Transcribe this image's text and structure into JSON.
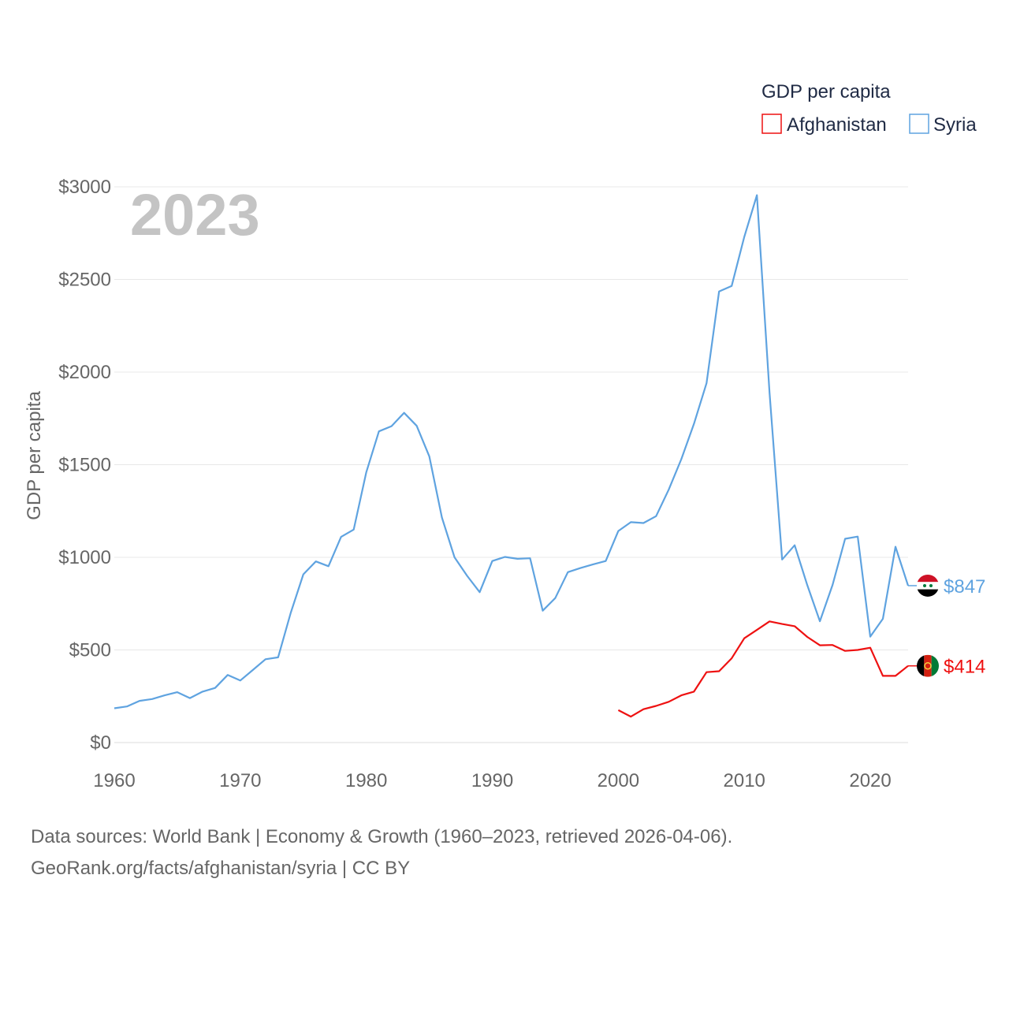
{
  "chart_data": {
    "type": "line",
    "title": "GDP per capita",
    "watermark_year": "2023",
    "xlabel": "",
    "ylabel": "GDP per capita",
    "xlim": [
      1960,
      2023
    ],
    "ylim": [
      0,
      3000
    ],
    "x_ticks": [
      1960,
      1970,
      1980,
      1990,
      2000,
      2010,
      2020
    ],
    "x_tick_labels": [
      "1960",
      "1970",
      "1980",
      "1990",
      "2000",
      "2010",
      "2020"
    ],
    "y_ticks": [
      0,
      500,
      1000,
      1500,
      2000,
      2500,
      3000
    ],
    "y_tick_labels": [
      "$0",
      "$500",
      "$1000",
      "$1500",
      "$2000",
      "$2500",
      "$3000"
    ],
    "grid": true,
    "legend_position": "top-right",
    "series": [
      {
        "name": "Afghanistan",
        "color": "#ee1111",
        "end_label": "$414",
        "flag_icon": "afghanistan-flag-icon",
        "x": [
          2000,
          2001,
          2002,
          2003,
          2004,
          2005,
          2006,
          2007,
          2008,
          2009,
          2010,
          2011,
          2012,
          2013,
          2014,
          2015,
          2016,
          2017,
          2018,
          2019,
          2020,
          2021,
          2022,
          2023
        ],
        "values": [
          175,
          140,
          180,
          198,
          220,
          255,
          275,
          380,
          385,
          455,
          563,
          608,
          654,
          640,
          628,
          570,
          525,
          527,
          495,
          500,
          512,
          360,
          360,
          414
        ]
      },
      {
        "name": "Syria",
        "color": "#5fa3e0",
        "end_label": "$847",
        "flag_icon": "syria-flag-icon",
        "x": [
          1960,
          1961,
          1962,
          1963,
          1964,
          1965,
          1966,
          1967,
          1968,
          1969,
          1970,
          1971,
          1972,
          1973,
          1974,
          1975,
          1976,
          1977,
          1978,
          1979,
          1980,
          1981,
          1982,
          1983,
          1984,
          1985,
          1986,
          1987,
          1988,
          1989,
          1990,
          1991,
          1992,
          1993,
          1994,
          1995,
          1996,
          1997,
          1998,
          1999,
          2000,
          2001,
          2002,
          2003,
          2004,
          2005,
          2006,
          2007,
          2008,
          2009,
          2010,
          2011,
          2012,
          2013,
          2014,
          2015,
          2016,
          2017,
          2018,
          2019,
          2020,
          2021,
          2022,
          2023
        ],
        "values": [
          185,
          195,
          225,
          235,
          255,
          272,
          240,
          275,
          295,
          365,
          335,
          392,
          450,
          460,
          700,
          908,
          978,
          952,
          1110,
          1150,
          1460,
          1680,
          1708,
          1780,
          1710,
          1545,
          1215,
          1000,
          900,
          812,
          980,
          1002,
          992,
          995,
          712,
          780,
          920,
          942,
          962,
          980,
          1142,
          1190,
          1185,
          1222,
          1365,
          1530,
          1720,
          1940,
          2435,
          2465,
          2730,
          2955,
          1890,
          988,
          1065,
          850,
          655,
          850,
          1100,
          1112,
          572,
          668,
          1057,
          847
        ]
      }
    ]
  },
  "footer": {
    "sources": "Data sources: World Bank | Economy & Growth (1960–2023, retrieved 2026-04-06).",
    "attribution": "GeoRank.org/facts/afghanistan/syria | CC BY"
  }
}
